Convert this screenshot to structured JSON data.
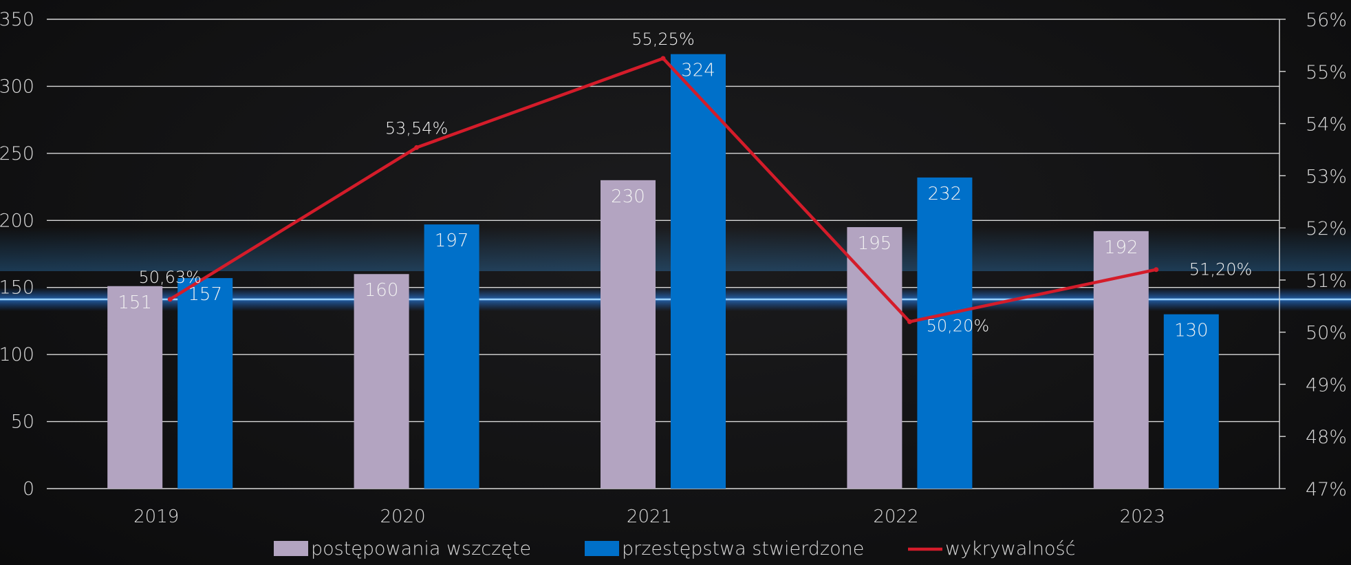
{
  "chart_data": {
    "type": "bar",
    "categories": [
      "2019",
      "2020",
      "2021",
      "2022",
      "2023"
    ],
    "series": [
      {
        "name": "postępowania wszczęte",
        "type": "bar",
        "axis": "left",
        "color": "#b3a4c1",
        "values": [
          151,
          160,
          230,
          195,
          192
        ],
        "labels": [
          "151",
          "160",
          "230",
          "195",
          "192"
        ]
      },
      {
        "name": "przestępstwa stwierdzone",
        "type": "bar",
        "axis": "left",
        "color": "#0070c9",
        "values": [
          157,
          197,
          324,
          232,
          130
        ],
        "labels": [
          "157",
          "197",
          "324",
          "232",
          "130"
        ]
      },
      {
        "name": "wykrywalność",
        "type": "line",
        "axis": "right",
        "color": "#d41c2a",
        "values": [
          50.63,
          53.54,
          55.25,
          50.2,
          51.2
        ],
        "labels": [
          "50,63%",
          "53,54%",
          "55,25%",
          "50,20%",
          "51,20%"
        ]
      }
    ],
    "y_left": {
      "min": 0,
      "max": 350,
      "ticks": [
        "0",
        "50",
        "100",
        "150",
        "200",
        "250",
        "300",
        "350"
      ]
    },
    "y_right": {
      "min": 47,
      "max": 56,
      "ticks": [
        "47%",
        "48%",
        "49%",
        "50%",
        "51%",
        "52%",
        "53%",
        "54%",
        "55%",
        "56%"
      ]
    },
    "grid": true,
    "legend_position": "bottom"
  }
}
